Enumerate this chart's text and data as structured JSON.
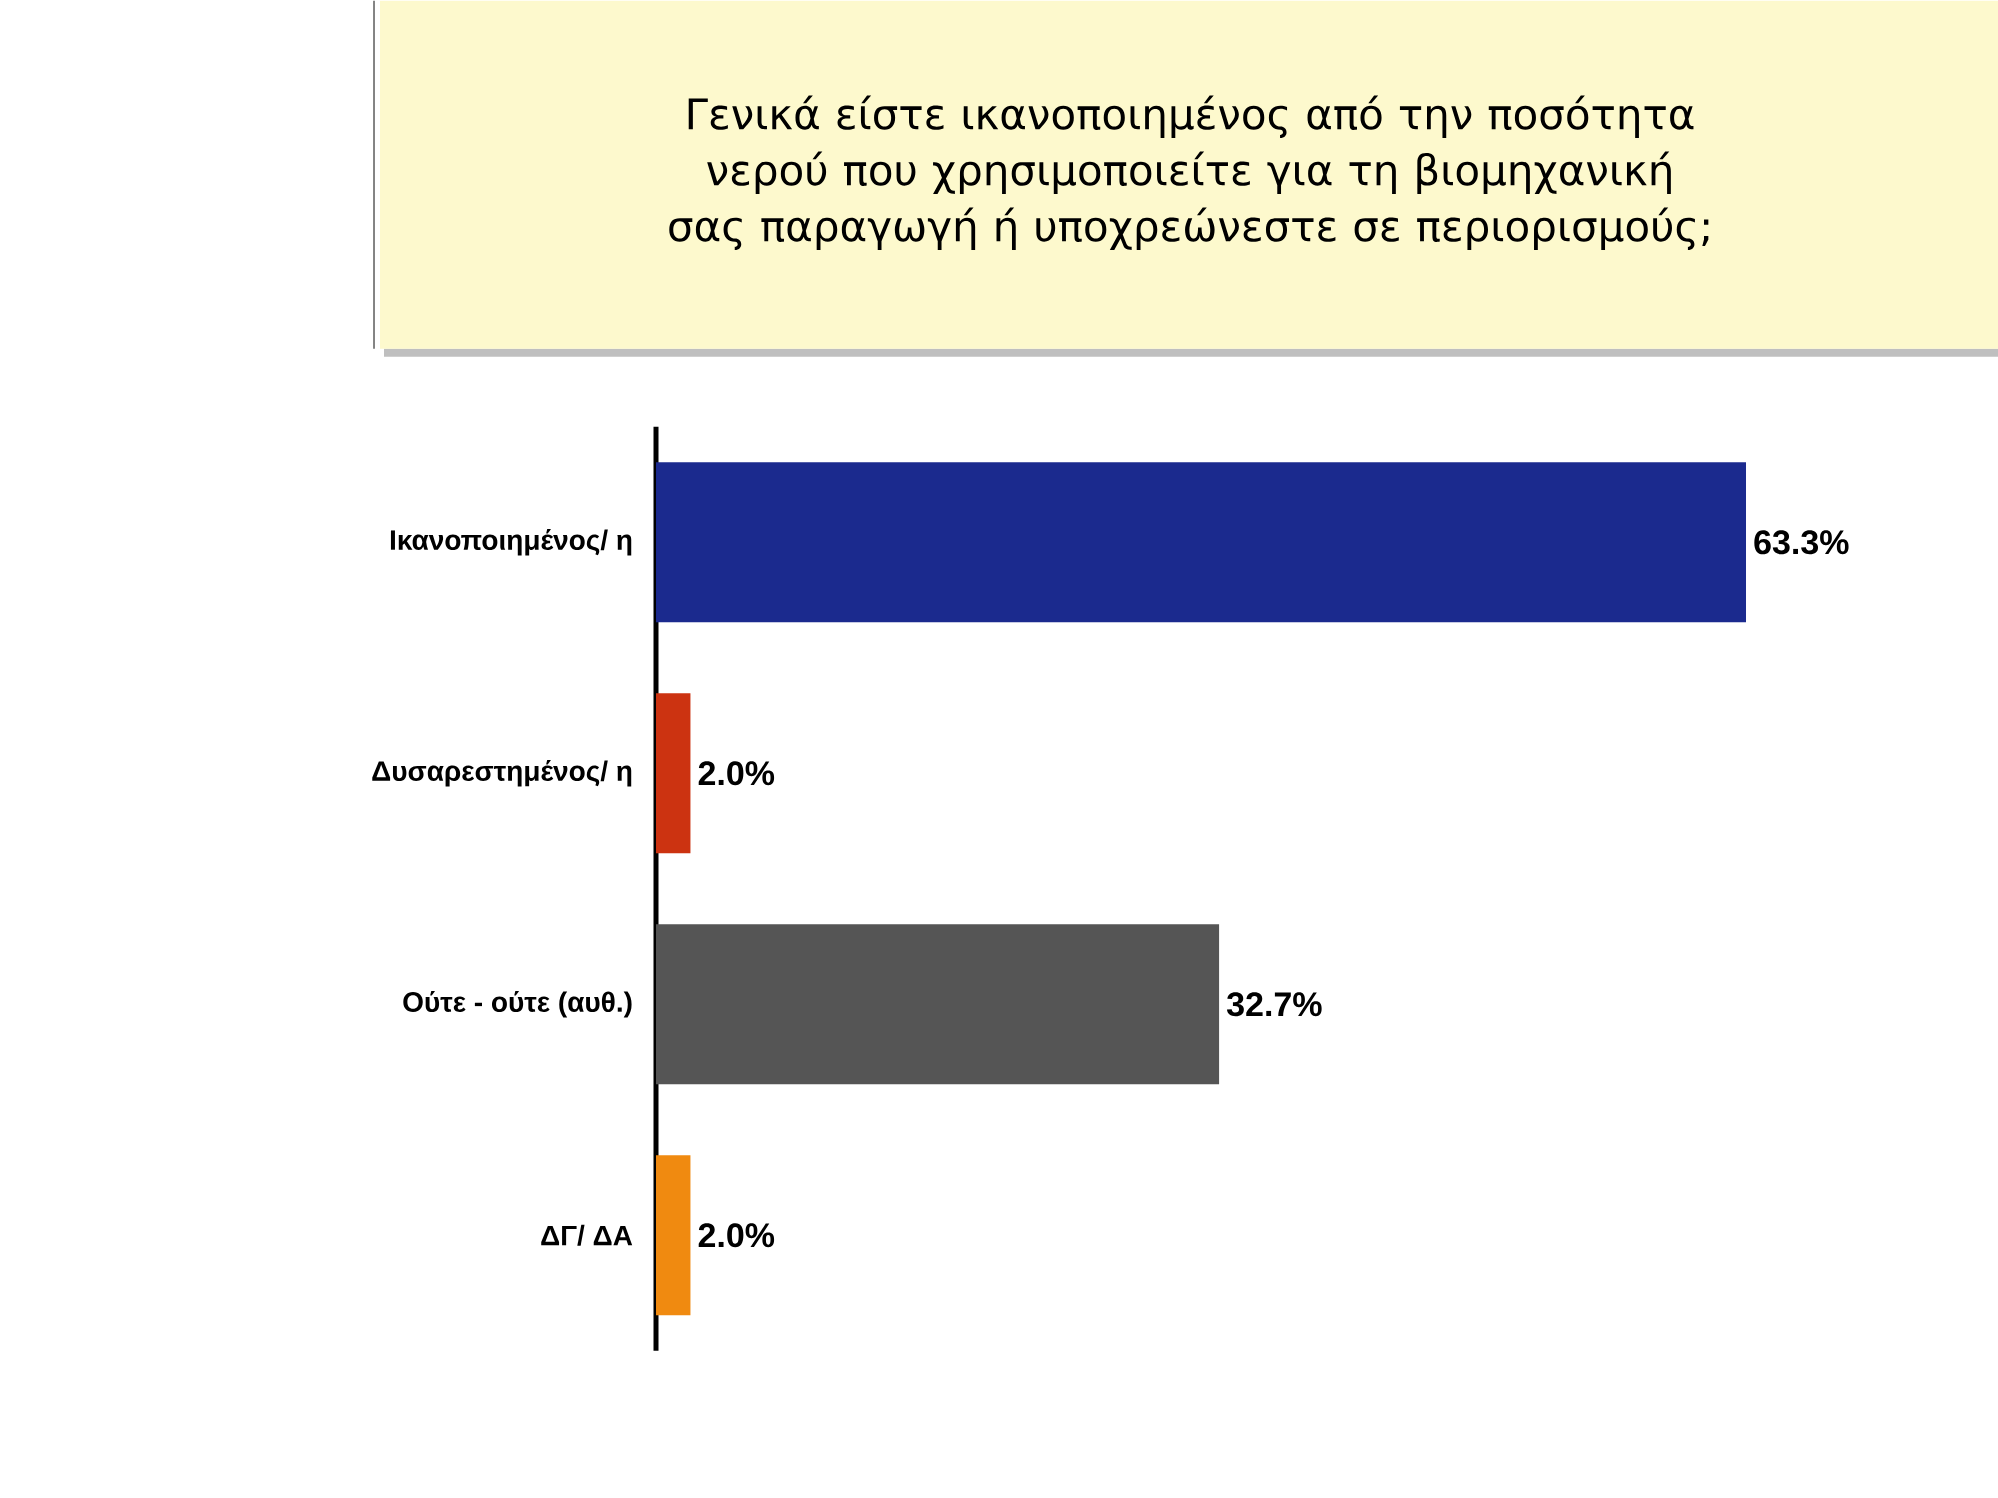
{
  "chart_data": {
    "type": "bar",
    "orientation": "horizontal",
    "title": "Γενικά είστε ικανοποιημένος από την ποσότητα νερού που χρησιμοποιείτε για τη βιομηχανική σας παραγωγή ή υποχρεώνεστε σε περιορισμούς;",
    "categories": [
      "Ικανοποιημένος/ η",
      "Δυσαρεστημένος/ η",
      "Ούτε - ούτε (αυθ.)",
      "ΔΓ/ ΔΑ"
    ],
    "values": [
      63.3,
      2.0,
      32.7,
      2.0
    ],
    "colors": [
      "#1b2a8e",
      "#cc3311",
      "#555555",
      "#f08a10"
    ],
    "value_labels": [
      "63.3%",
      "2.0%",
      "32.7%",
      "2.0%"
    ]
  }
}
